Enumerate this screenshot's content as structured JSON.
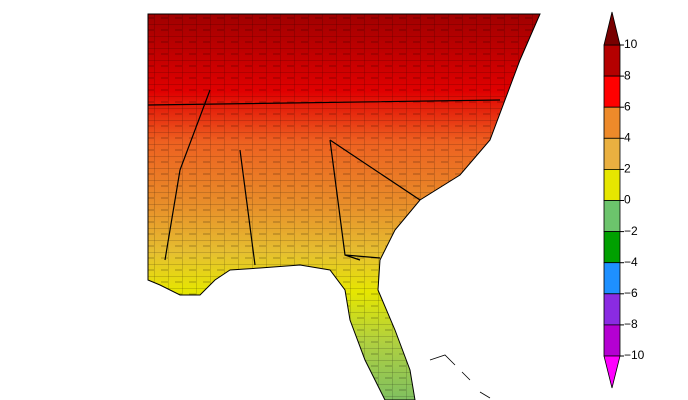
{
  "colorbar": {
    "lim": [
      -10,
      10
    ],
    "ticks": [
      10,
      8,
      6,
      4,
      2,
      0,
      {
        "value": -2,
        "label": "−2"
      },
      {
        "value": -4,
        "label": "−4"
      },
      {
        "value": -6,
        "label": "−6"
      },
      {
        "value": -8,
        "label": "−8"
      },
      {
        "value": -10,
        "label": "−10"
      }
    ],
    "colors": [
      "#b40000",
      "#ff0000",
      "#ee8a2a",
      "#eab040",
      "#e6e600",
      "#6cc46c",
      "#00a000",
      "#1e90ff",
      "#8a2be2",
      "#b400d2"
    ],
    "over_color": "#780000",
    "under_color": "#ff00ff"
  }
}
